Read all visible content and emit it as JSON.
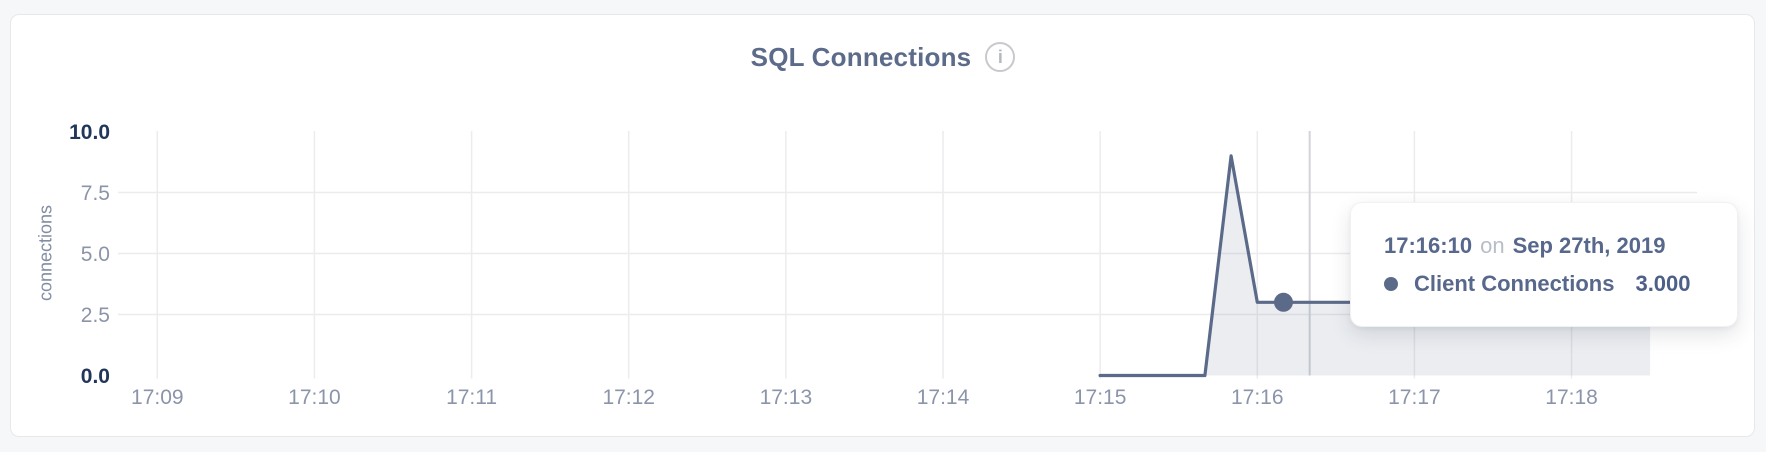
{
  "panel": {
    "title": "SQL Connections",
    "info_icon_glyph": "i"
  },
  "colors": {
    "accent_line": "#5c6a89",
    "area_fill": "rgba(92,106,137,0.12)",
    "grid": "#ececef",
    "crosshair": "#d2d4d9",
    "tick_strong": "#22365a",
    "tick_muted": "#8b94a9",
    "title_text": "#5c6b89",
    "tooltip_text": "#57688c"
  },
  "chart_data": {
    "type": "area",
    "title": "SQL Connections",
    "xlabel": "",
    "ylabel": "connections",
    "ylim": [
      0,
      10
    ],
    "grid": true,
    "legend_position": "none",
    "y_ticks": [
      {
        "label": "10.0",
        "value": 10,
        "strong": true
      },
      {
        "label": "7.5",
        "value": 7.5,
        "strong": false
      },
      {
        "label": "5.0",
        "value": 5,
        "strong": false
      },
      {
        "label": "2.5",
        "value": 2.5,
        "strong": false
      },
      {
        "label": "0.0",
        "value": 0,
        "strong": true
      }
    ],
    "x_ticks": [
      {
        "label": "17:09",
        "time": "17:09:00"
      },
      {
        "label": "17:10",
        "time": "17:10:00"
      },
      {
        "label": "17:11",
        "time": "17:11:00"
      },
      {
        "label": "17:12",
        "time": "17:12:00"
      },
      {
        "label": "17:13",
        "time": "17:13:00"
      },
      {
        "label": "17:14",
        "time": "17:14:00"
      },
      {
        "label": "17:15",
        "time": "17:15:00"
      },
      {
        "label": "17:16",
        "time": "17:16:00"
      },
      {
        "label": "17:17",
        "time": "17:17:00"
      },
      {
        "label": "17:18",
        "time": "17:18:00"
      }
    ],
    "series": [
      {
        "name": "Client Connections",
        "points": [
          {
            "time": "17:15:00",
            "value": 0
          },
          {
            "time": "17:15:10",
            "value": 0
          },
          {
            "time": "17:15:20",
            "value": 0
          },
          {
            "time": "17:15:30",
            "value": 0
          },
          {
            "time": "17:15:40",
            "value": 0
          },
          {
            "time": "17:15:50",
            "value": 9
          },
          {
            "time": "17:16:00",
            "value": 3
          },
          {
            "time": "17:16:10",
            "value": 3
          },
          {
            "time": "17:16:20",
            "value": 3
          },
          {
            "time": "17:16:30",
            "value": 3
          },
          {
            "time": "17:16:40",
            "value": 3
          },
          {
            "time": "17:16:50",
            "value": 3
          },
          {
            "time": "17:17:00",
            "value": 3
          },
          {
            "time": "17:17:10",
            "value": 3
          },
          {
            "time": "17:17:20",
            "value": 3
          },
          {
            "time": "17:17:30",
            "value": 3
          },
          {
            "time": "17:17:40",
            "value": 3
          },
          {
            "time": "17:17:50",
            "value": 3
          },
          {
            "time": "17:18:00",
            "value": 3
          },
          {
            "time": "17:18:10",
            "value": 3
          },
          {
            "time": "17:18:20",
            "value": 3
          },
          {
            "time": "17:18:30",
            "value": 3
          }
        ]
      }
    ],
    "hover": {
      "time": "17:16:10",
      "value": 3,
      "crosshair_time": "17:16:20"
    }
  },
  "tooltip": {
    "time": "17:16:10",
    "connector": "on",
    "date": "Sep 27th, 2019",
    "series_label": "Client Connections",
    "value": "3.000"
  }
}
